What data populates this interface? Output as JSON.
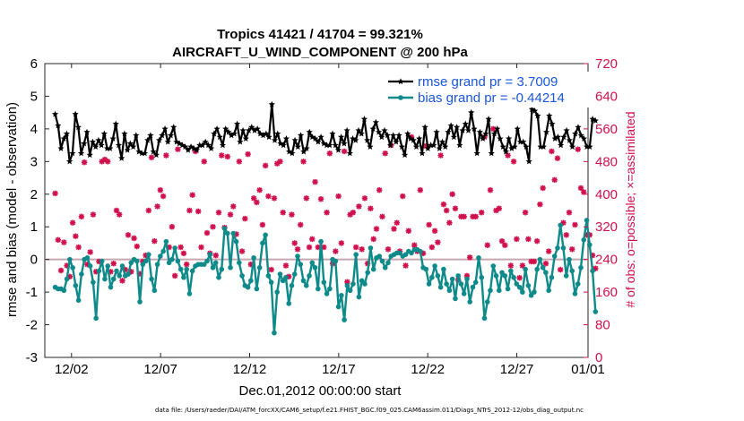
{
  "chart_data": {
    "type": "line",
    "title": "Tropics 41421 / 41704 = 99.321%",
    "subtitle": "AIRCRAFT_U_WIND_COMPONENT @ 200 hPa",
    "xlabel": "Dec.01,2012 00:00:00 start",
    "ylabel": "rmse and bias (model - observation)",
    "ylabel_right": "# of obs: o=possible; ×=assimilated",
    "footer": "data file: /Users/raeder/DAI/ATM_forcXX/CAM6_setup/f.e21.FHIST_BGC.f09_025.CAM6assim.011/Diags_NTrS_2012-12/obs_diag_output.nc",
    "xlim": [
      0.5,
      31.0
    ],
    "ylim": [
      -3,
      6
    ],
    "ylim_right": [
      0,
      720
    ],
    "x_ticks": [
      {
        "label": "12/02",
        "x": 2
      },
      {
        "label": "12/07",
        "x": 7
      },
      {
        "label": "12/12",
        "x": 12
      },
      {
        "label": "12/17",
        "x": 17
      },
      {
        "label": "12/22",
        "x": 22
      },
      {
        "label": "12/27",
        "x": 27
      },
      {
        "label": "01/01",
        "x": 32
      }
    ],
    "y_ticks_left": [
      "-3",
      "-2",
      "-1",
      "0",
      "1",
      "2",
      "3",
      "4",
      "5",
      "6"
    ],
    "y_ticks_right": [
      "0",
      "80",
      "160",
      "240",
      "320",
      "400",
      "480",
      "560",
      "640",
      "720"
    ],
    "series": [
      {
        "name": "rmse grand pr = 3.7009",
        "color": "#000000",
        "marker": "star",
        "values": [
          4.45,
          4.1,
          3.4,
          3.7,
          3.85,
          3.0,
          3.25,
          4.45,
          4.05,
          3.25,
          3.55,
          3.9,
          3.2,
          3.6,
          3.45,
          3.65,
          3.5,
          3.85,
          3.4,
          3.4,
          3.7,
          4.15,
          3.5,
          3.1,
          3.85,
          3.35,
          3.55,
          3.45,
          3.8,
          3.3,
          3.25,
          3.25,
          3.65,
          3.8,
          3.3,
          3.2,
          3.65,
          3.8,
          4.0,
          3.6,
          3.8,
          4.05,
          3.6,
          3.55,
          3.5,
          3.45,
          3.35,
          3.45,
          3.4,
          3.35,
          3.5,
          3.5,
          3.6,
          3.5,
          3.4,
          3.85,
          4.0,
          3.75,
          3.5,
          4.0,
          3.9,
          3.8,
          3.85,
          4.15,
          3.6,
          3.95,
          3.7,
          3.95,
          4.05,
          3.95,
          4.0,
          3.85,
          3.8,
          3.85,
          3.75,
          4.75,
          3.65,
          3.85,
          3.55,
          3.5,
          3.7,
          3.3,
          3.25,
          3.65,
          3.45,
          3.8,
          3.3,
          3.4,
          3.9,
          3.75,
          3.7,
          3.6,
          3.75,
          3.55,
          3.5,
          3.5,
          3.85,
          3.5,
          3.35,
          3.75,
          3.55,
          3.95,
          3.25,
          3.7,
          3.65,
          3.95,
          3.85,
          4.3,
          3.65,
          3.45,
          4.0,
          4.2,
          3.9,
          3.75,
          3.95,
          3.8,
          3.5,
          3.8,
          3.6,
          3.8,
          3.45,
          3.2,
          3.85,
          3.7,
          3.65,
          3.45,
          3.7,
          3.25,
          4.05,
          3.4,
          3.5,
          3.5,
          3.9,
          3.4,
          3.6,
          3.45,
          3.9,
          4.1,
          3.75,
          4.05,
          3.5,
          3.95,
          4.15,
          3.95,
          4.5,
          4.0,
          3.25,
          3.9,
          3.7,
          3.85,
          4.3,
          3.25,
          3.85,
          4.0,
          3.7,
          3.45,
          3.3,
          3.7,
          3.4,
          3.45,
          4.0,
          3.6,
          3.6,
          3.45,
          3.0,
          4.6,
          4.55,
          4.4,
          3.45,
          3.45,
          3.9,
          4.4,
          4.15,
          3.7,
          3.75,
          3.5,
          3.75,
          3.95,
          3.65,
          3.45,
          3.85,
          4.05,
          3.8,
          3.7,
          3.45,
          3.45,
          4.3,
          4.25
        ]
      },
      {
        "name": "bias grand pr = -0.44214",
        "color": "#0e8a8a",
        "marker": "circle",
        "values": [
          -0.85,
          -0.9,
          -0.9,
          -0.95,
          -0.6,
          0.0,
          -0.25,
          -0.8,
          -1.25,
          -0.45,
          0.0,
          0.05,
          -0.2,
          -0.7,
          -1.8,
          -0.35,
          -0.05,
          -0.6,
          -0.2,
          -0.85,
          -0.6,
          -0.35,
          -0.5,
          -0.2,
          -0.5,
          -0.45,
          -0.1,
          0.0,
          -0.05,
          -1.3,
          -0.15,
          -0.05,
          0.15,
          -0.6,
          -0.95,
          -0.15,
          0.1,
          0.25,
          0.55,
          -0.1,
          0.0,
          0.35,
          -0.05,
          -0.3,
          -0.55,
          -0.3,
          -1.05,
          -0.35,
          -0.2,
          -0.15,
          -0.15,
          -0.15,
          -0.05,
          0.15,
          -0.25,
          -0.1,
          -0.55,
          -0.3,
          0.95,
          0.8,
          -0.25,
          0.8,
          0.55,
          -0.1,
          -0.5,
          -0.8,
          -0.85,
          -0.65,
          0.05,
          -0.9,
          -0.25,
          0.5,
          0.75,
          -0.5,
          -0.7,
          -2.25,
          -1.0,
          -0.45,
          -0.65,
          -0.55,
          -1.35,
          -0.8,
          -0.45,
          0.1,
          -0.15,
          -0.65,
          -0.8,
          -0.5,
          -0.1,
          -0.25,
          -0.9,
          0.55,
          -0.7,
          -1.05,
          -0.9,
          0.0,
          -0.05,
          -1.45,
          -1.1,
          -1.85,
          -0.8,
          -0.95,
          -0.75,
          0.15,
          -1.15,
          -0.65,
          -0.75,
          -0.4,
          0.35,
          -0.3,
          0.05,
          0.1,
          -0.05,
          -0.25,
          -0.1,
          0.1,
          0.15,
          0.2,
          0.2,
          0.1,
          0.15,
          0.25,
          0.2,
          0.3,
          0.3,
          0.25,
          -0.25,
          -0.3,
          -0.75,
          -0.55,
          -0.2,
          -0.5,
          -0.85,
          -0.3,
          -0.75,
          -0.95,
          -0.6,
          -1.2,
          -0.5,
          -0.75,
          -1.05,
          -0.6,
          -1.3,
          -0.85,
          -0.7,
          0.05,
          -0.55,
          -1.8,
          -1.3,
          -0.95,
          -0.2,
          -0.5,
          -0.95,
          -0.4,
          -0.5,
          -0.9,
          -0.35,
          -0.55,
          -0.75,
          -0.85,
          -1.0,
          -0.3,
          -0.8,
          -1.1,
          -1.0,
          -0.3,
          0.0,
          -0.25,
          -0.4,
          -0.95,
          -0.55,
          0.1,
          0.35,
          1.05,
          0.35,
          -0.5,
          0.0,
          -0.35,
          -1.05,
          -0.75,
          -0.25,
          0.6,
          1.2,
          0.45,
          -0.35,
          -1.6
        ]
      }
    ],
    "obs_series": {
      "name": "# of obs (right axis)",
      "color": "#d0104c",
      "values": [
        402,
        288,
        213,
        282,
        225,
        198,
        330,
        297,
        270,
        345,
        478,
        228,
        258,
        350,
        210,
        235,
        480,
        485,
        480,
        210,
        230,
        360,
        350,
        188,
        215,
        300,
        210,
        292,
        272,
        205,
        235,
        250,
        360,
        490,
        285,
        370,
        410,
        395,
        495,
        270,
        320,
        200,
        510,
        270,
        255,
        228,
        360,
        398,
        505,
        358,
        270,
        480,
        305,
        255,
        320,
        250,
        355,
        495,
        318,
        492,
        350,
        370,
        302,
        480,
        260,
        340,
        498,
        228,
        390,
        380,
        410,
        325,
        470,
        395,
        215,
        390,
        475,
        480,
        355,
        225,
        198,
        350,
        280,
        265,
        325,
        480,
        390,
        270,
        290,
        430,
        270,
        388,
        270,
        355,
        500,
        230,
        260,
        395,
        280,
        505,
        185,
        350,
        355,
        270,
        370,
        265,
        390,
        230,
        365,
        290,
        315,
        410,
        345,
        500,
        265,
        520,
        315,
        330,
        260,
        395,
        225,
        310,
        540,
        275,
        260,
        410,
        255,
        518,
        325,
        270,
        310,
        282,
        495,
        375,
        360,
        330,
        400,
        365,
        190,
        345,
        345,
        200,
        245,
        345,
        345,
        635,
        355,
        540,
        275,
        410,
        560,
        360,
        365,
        285,
        275,
        495,
        225,
        480,
        290,
        195,
        225,
        355,
        290,
        235,
        235,
        285,
        375,
        415,
        230,
        260,
        505,
        435,
        488,
        215,
        330,
        300,
        355,
        265,
        325,
        510,
        415,
        405,
        300,
        300,
        250,
        218
      ]
    },
    "line_at": 0
  }
}
